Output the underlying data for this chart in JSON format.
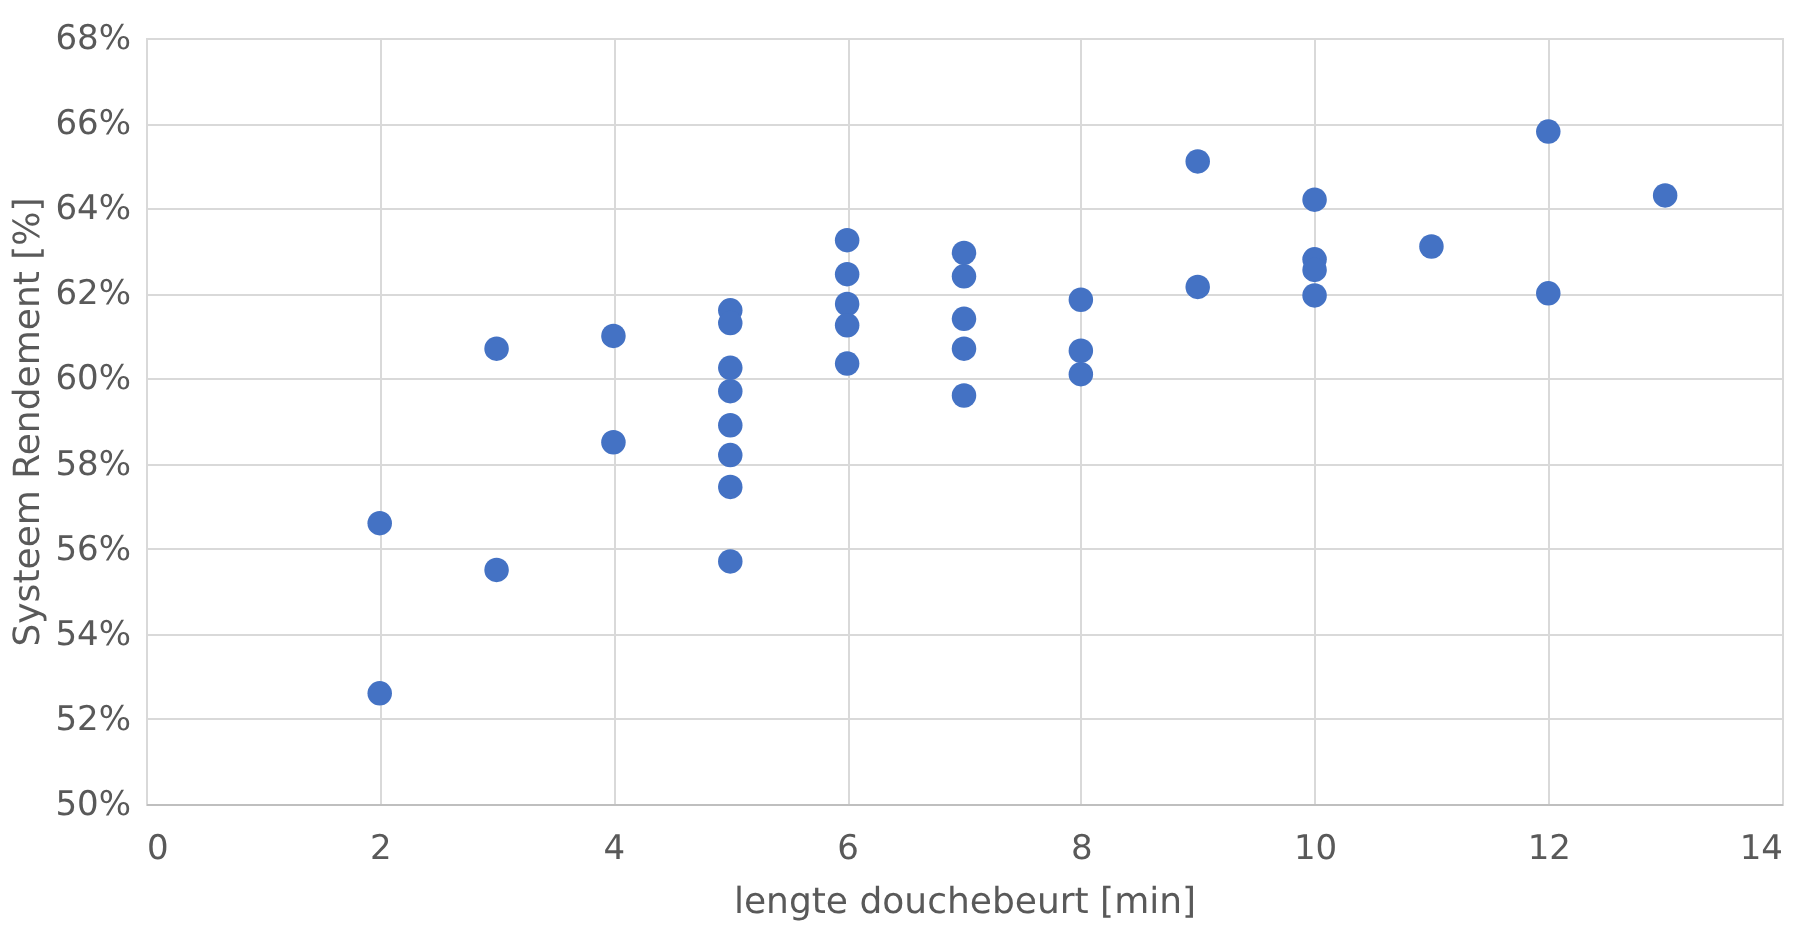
{
  "chart_data": {
    "type": "scatter",
    "xlabel": "lengte douchebeurt [min]",
    "ylabel": "Systeem Rendement  [%]",
    "x": [
      2,
      2,
      3,
      3,
      4,
      4,
      5,
      5,
      5,
      5,
      5,
      5,
      5,
      5,
      6,
      6,
      6,
      6,
      6,
      7,
      7,
      7,
      7,
      7,
      8,
      8,
      8,
      9,
      9,
      10,
      10,
      10,
      10,
      11,
      12,
      12,
      13
    ],
    "series": [
      {
        "color": "#4472c4",
        "values": [
          56.6,
          52.6,
          60.7,
          55.5,
          61.0,
          58.5,
          61.6,
          61.3,
          60.25,
          59.7,
          58.9,
          58.2,
          57.45,
          55.7,
          63.25,
          62.45,
          61.75,
          61.25,
          60.35,
          62.95,
          62.4,
          61.4,
          60.7,
          59.6,
          61.85,
          60.65,
          60.1,
          65.1,
          62.15,
          64.2,
          62.8,
          62.55,
          61.95,
          63.1,
          65.8,
          62.0,
          64.3
        ]
      }
    ],
    "xlim": [
      0,
      14
    ],
    "xticks": [
      0,
      2,
      4,
      6,
      8,
      10,
      12,
      14
    ],
    "ylim": [
      50,
      68
    ],
    "yticks": [
      {
        "value": 50,
        "label": "50%"
      },
      {
        "value": 52,
        "label": "52%"
      },
      {
        "value": 54,
        "label": "54%"
      },
      {
        "value": 56,
        "label": "56%"
      },
      {
        "value": 58,
        "label": "58%"
      },
      {
        "value": 60,
        "label": "60%"
      },
      {
        "value": 62,
        "label": "62%"
      },
      {
        "value": 64,
        "label": "64%"
      },
      {
        "value": 66,
        "label": "66%"
      },
      {
        "value": 68,
        "label": "68%"
      }
    ],
    "grid": true,
    "marker": "circle"
  }
}
